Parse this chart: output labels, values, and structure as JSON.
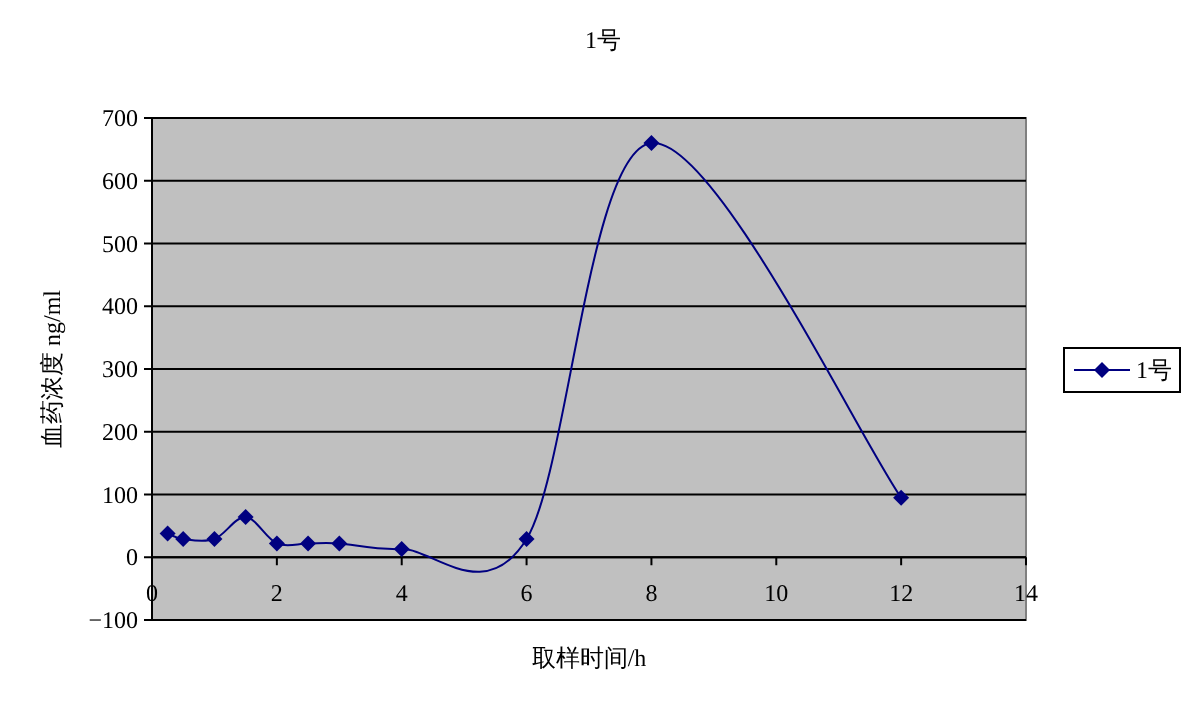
{
  "chart_data": {
    "type": "line",
    "title": "1号",
    "xlabel": "取样时间/h",
    "ylabel": "血药浓度 ng/ml",
    "x": [
      0.25,
      0.5,
      1,
      1.5,
      2,
      2.5,
      3,
      4,
      6,
      8,
      12
    ],
    "series": [
      {
        "name": "1号",
        "color": "#000080",
        "values": [
          38,
          29,
          29,
          64,
          22,
          22,
          22,
          13,
          29,
          660,
          95
        ]
      }
    ],
    "xlim": [
      0,
      14
    ],
    "xticks": [
      0,
      2,
      4,
      6,
      8,
      10,
      12,
      14
    ],
    "ylim": [
      -100,
      700
    ],
    "yticks": [
      -100,
      0,
      100,
      200,
      300,
      400,
      500,
      600,
      700
    ],
    "grid": "y",
    "legend": "right",
    "marker": "diamond",
    "line_style": "solid"
  }
}
